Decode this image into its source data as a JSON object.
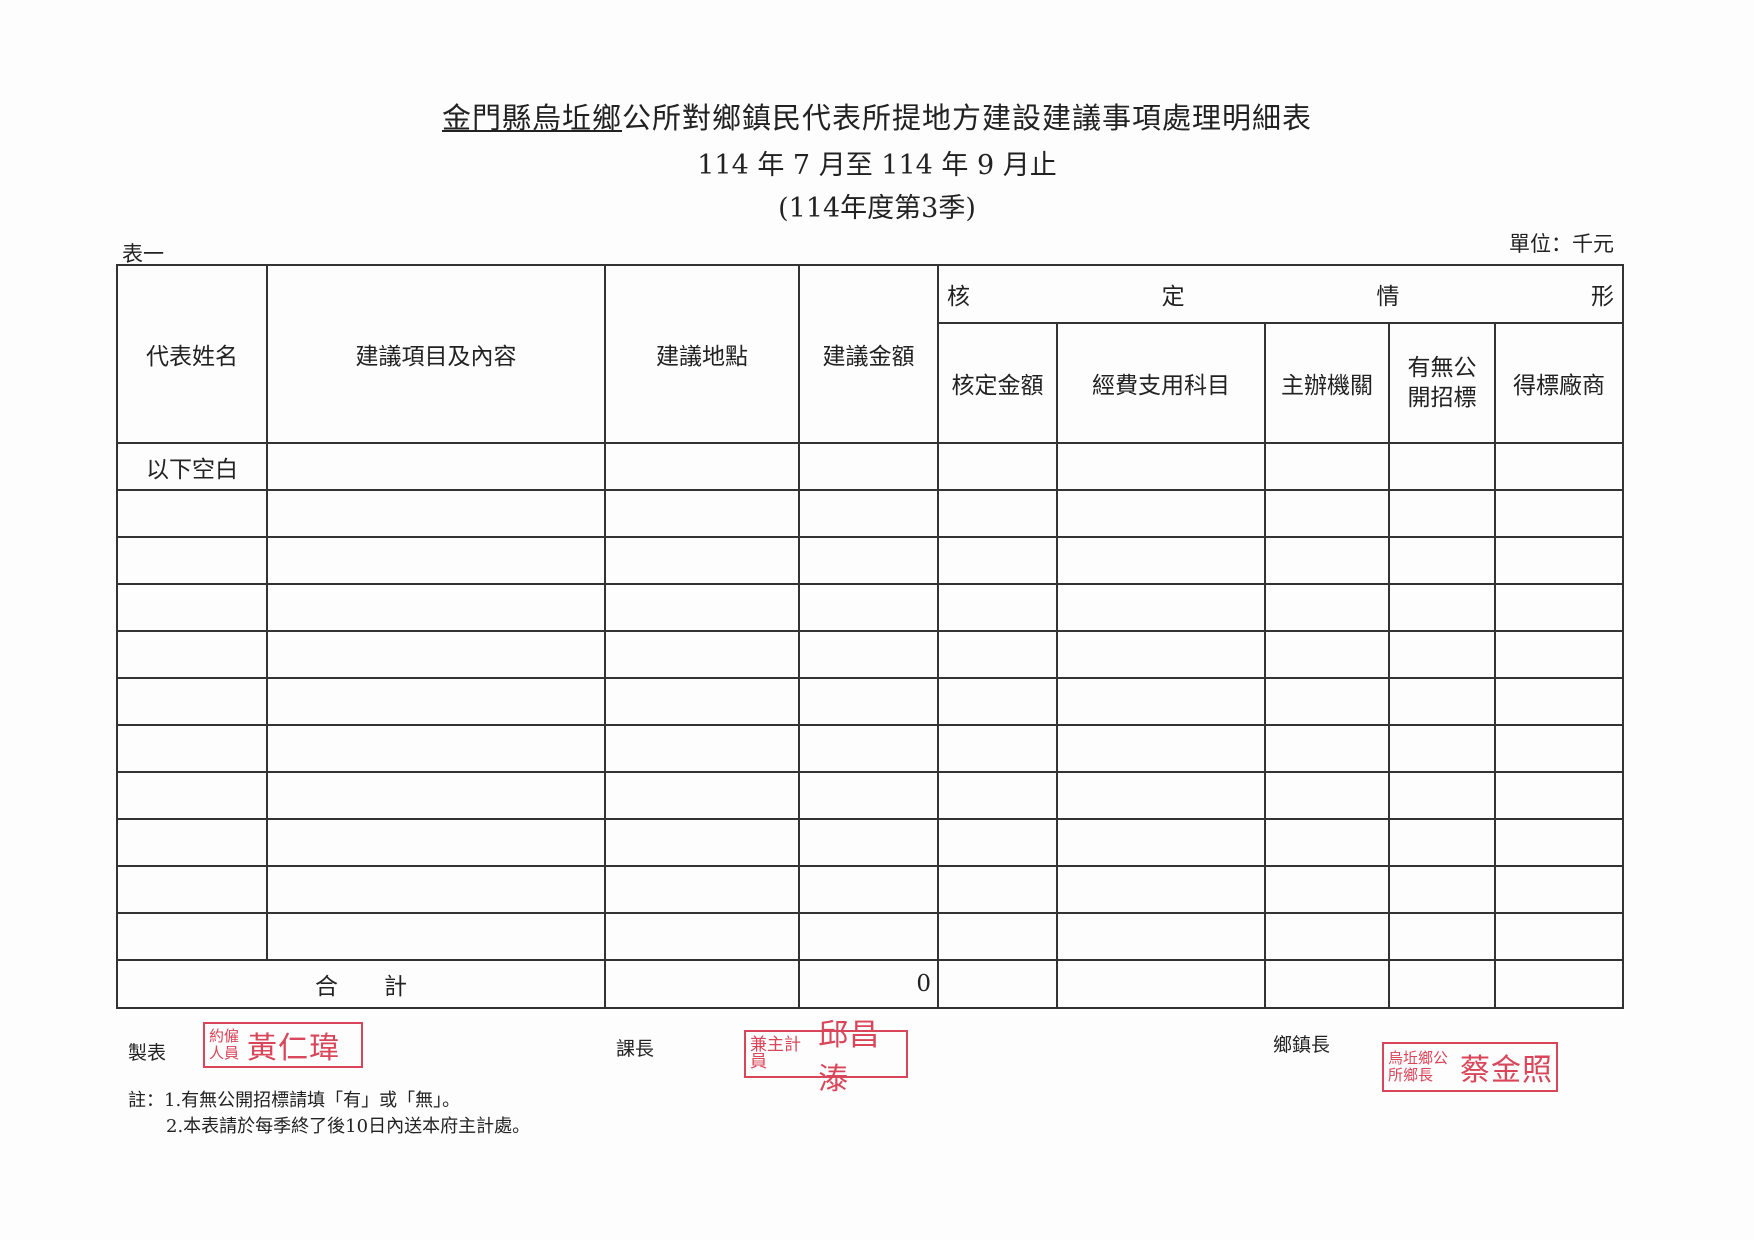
{
  "header": {
    "title_underlined": "金門縣烏坵鄉",
    "title_rest": "公所對鄉鎮民代表所提地方建設建議事項處理明細表",
    "period": "114 年 7 月至 114 年 9 月止",
    "quarter": "(114年度第3季)",
    "table_no": "表一",
    "unit": "單位：千元"
  },
  "table": {
    "columns": [
      "代表姓名",
      "建議項目及內容",
      "建議地點",
      "建議金額"
    ],
    "group_header": [
      "核",
      "定",
      "情",
      "形"
    ],
    "sub_columns": [
      "核定金額",
      "經費支用科目",
      "主辦機關",
      "有無公開招標",
      "得標廠商"
    ],
    "rows": [
      [
        "以下空白",
        "",
        "",
        "",
        "",
        "",
        "",
        "",
        ""
      ],
      [
        "",
        "",
        "",
        "",
        "",
        "",
        "",
        "",
        ""
      ],
      [
        "",
        "",
        "",
        "",
        "",
        "",
        "",
        "",
        ""
      ],
      [
        "",
        "",
        "",
        "",
        "",
        "",
        "",
        "",
        ""
      ],
      [
        "",
        "",
        "",
        "",
        "",
        "",
        "",
        "",
        ""
      ],
      [
        "",
        "",
        "",
        "",
        "",
        "",
        "",
        "",
        ""
      ],
      [
        "",
        "",
        "",
        "",
        "",
        "",
        "",
        "",
        ""
      ],
      [
        "",
        "",
        "",
        "",
        "",
        "",
        "",
        "",
        ""
      ],
      [
        "",
        "",
        "",
        "",
        "",
        "",
        "",
        "",
        ""
      ],
      [
        "",
        "",
        "",
        "",
        "",
        "",
        "",
        "",
        ""
      ],
      [
        "",
        "",
        "",
        "",
        "",
        "",
        "",
        "",
        ""
      ]
    ],
    "total_label": "合　　計",
    "total_amount": "0"
  },
  "signatures": {
    "preparer_label": "製表",
    "preparer_stamp_title": "約僱人員",
    "preparer_stamp_name": "黃仁瑋",
    "section_chief_label": "課長",
    "section_chief_stamp_title": "兼主計員",
    "section_chief_stamp_name": "邱昌溙",
    "mayor_label": "鄉鎮長",
    "mayor_stamp_title": "烏坵鄉公所鄉長",
    "mayor_stamp_name": "蔡金照",
    "stamp_color": "#d9465a"
  },
  "notes": {
    "prefix": "註：",
    "items": [
      "1.有無公開招標請填「有」或「無」。",
      "2.本表請於每季終了後10日內送本府主計處。"
    ]
  }
}
